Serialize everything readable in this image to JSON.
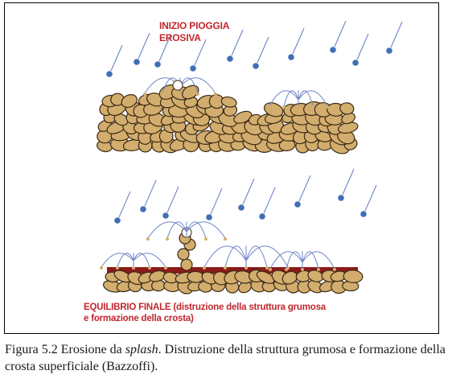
{
  "figure": {
    "top_label_line1": "INIZIO PIOGGIA",
    "top_label_line2": "EROSIVA",
    "bottom_label_line1": "EQUILIBRIO FINALE (distruzione della struttura grumosa",
    "bottom_label_line2": "e formazione della crosta)"
  },
  "caption": {
    "prefix": "Figura 5.2 Erosione da ",
    "italic": "splash",
    "suffix": ". Distruzione della struttura grumosa e formazione della crosta superficiale (Bazzoffi)."
  },
  "colors": {
    "raindrop": "#3f6fb5",
    "rain_streak": "#6f86c8",
    "soil": "#d2ad6e",
    "soil_outline": "#3b2a14",
    "crust": "#8b1a1a",
    "label": "#c0272d"
  }
}
